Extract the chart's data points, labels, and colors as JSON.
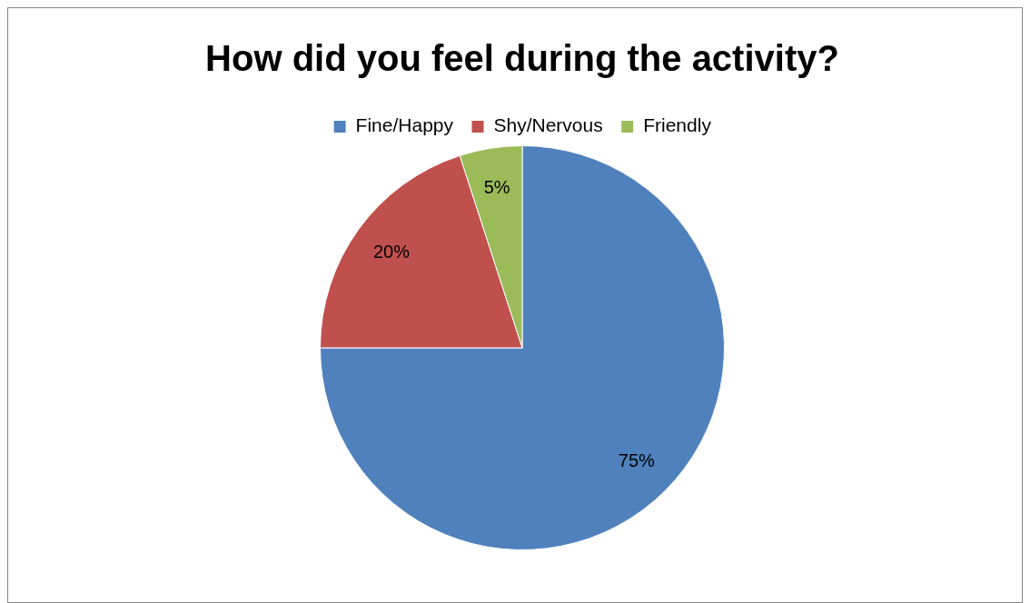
{
  "chart_data": {
    "type": "pie",
    "title": "How did you feel during the activity?",
    "categories": [
      "Fine/Happy",
      "Shy/Nervous",
      "Friendly"
    ],
    "values": [
      75,
      20,
      5
    ],
    "value_labels": [
      "75%",
      "20%",
      "5%"
    ],
    "colors": [
      "#4f81bd",
      "#c0504d",
      "#9bbb59"
    ],
    "legend": "top"
  }
}
